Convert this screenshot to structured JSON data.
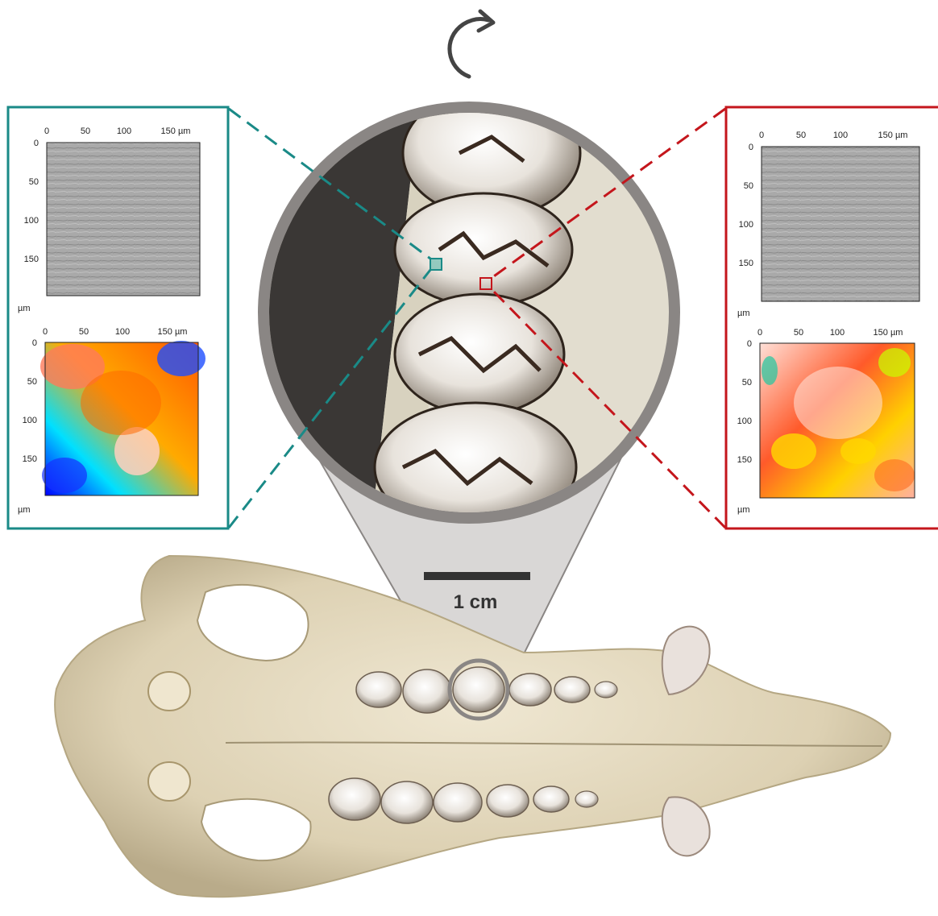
{
  "rotation_arrow": {
    "name": "rotate-arrow-icon"
  },
  "scale_bar": {
    "label": "1 cm"
  },
  "left_panel": {
    "color": "#1a8a87",
    "surface_axis": {
      "x_ticks": [
        "0",
        "50",
        "100",
        "150 µm"
      ],
      "y_ticks": [
        "0",
        "50",
        "100",
        "150"
      ],
      "unit": "µm"
    },
    "height_axis": {
      "x_ticks": [
        "0",
        "50",
        "100",
        "150 µm"
      ],
      "y_ticks": [
        "0",
        "50",
        "100",
        "150"
      ],
      "unit": "µm"
    }
  },
  "right_panel": {
    "color": "#c4161c",
    "surface_axis": {
      "x_ticks": [
        "0",
        "50",
        "100",
        "150 µm"
      ],
      "y_ticks": [
        "0",
        "50",
        "100",
        "150"
      ],
      "unit": "µm"
    },
    "height_axis": {
      "x_ticks": [
        "0",
        "50",
        "100",
        "150 µm"
      ],
      "y_ticks": [
        "0",
        "50",
        "100",
        "150"
      ],
      "unit": "µm"
    }
  },
  "colors": {
    "zoom_ring": "#8a8684",
    "zoom_cone": "#d9d7d6",
    "bone": "#e6dcc3",
    "scale_bar": "#333333"
  }
}
